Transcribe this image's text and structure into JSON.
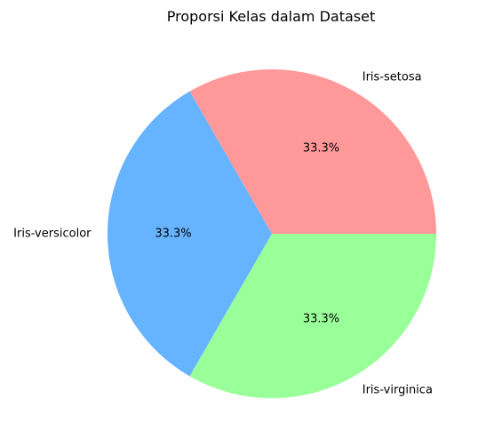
{
  "chart_data": {
    "type": "pie",
    "title": "Proporsi Kelas dalam Dataset",
    "categories": [
      "Iris-setosa",
      "Iris-versicolor",
      "Iris-virginica"
    ],
    "values": [
      33.3,
      33.3,
      33.3
    ],
    "percent_labels": [
      "33.3%",
      "33.3%",
      "33.3%"
    ],
    "colors": [
      "#ff9999",
      "#66b3ff",
      "#99ff99"
    ],
    "start_angle_deg": 0,
    "direction": "counterclockwise",
    "legend": "none"
  }
}
